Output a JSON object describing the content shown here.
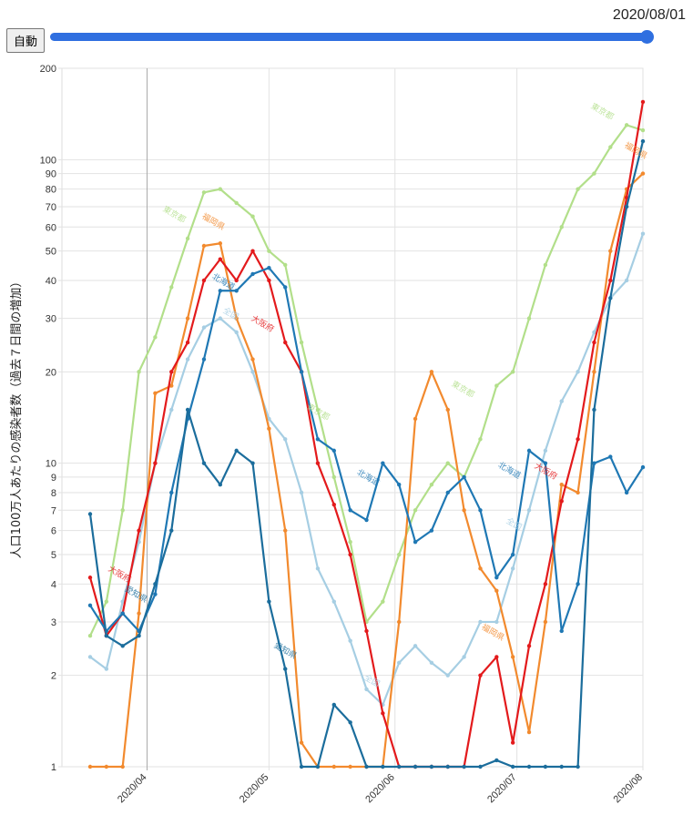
{
  "controls": {
    "auto_button": "自動",
    "current_date": "2020/08/01",
    "slider_value": 1.0
  },
  "chart_data": {
    "type": "line",
    "title": "",
    "xlabel": "",
    "ylabel": "人口100万人あたりの感染者数（過去７日間の増加）",
    "yscale": "log",
    "ylim": [
      1,
      200
    ],
    "yticks": [
      1,
      2,
      3,
      4,
      5,
      6,
      7,
      8,
      9,
      10,
      20,
      30,
      40,
      50,
      60,
      70,
      80,
      90,
      100,
      200
    ],
    "xlim": [
      "2020-03-18",
      "2020-08-01"
    ],
    "xticks": [
      {
        "date": "2020-04-01",
        "label": "2020/04"
      },
      {
        "date": "2020-05-01",
        "label": "2020/05"
      },
      {
        "date": "2020-06-01",
        "label": "2020/06"
      },
      {
        "date": "2020-07-01",
        "label": "2020/07"
      },
      {
        "date": "2020-08-01",
        "label": "2020/08"
      }
    ],
    "grid": true,
    "x": [
      "03-18",
      "03-22",
      "03-26",
      "03-30",
      "04-03",
      "04-07",
      "04-11",
      "04-15",
      "04-19",
      "04-23",
      "04-27",
      "05-01",
      "05-05",
      "05-09",
      "05-13",
      "05-17",
      "05-21",
      "05-25",
      "05-29",
      "06-02",
      "06-06",
      "06-10",
      "06-14",
      "06-18",
      "06-22",
      "06-26",
      "06-30",
      "07-04",
      "07-08",
      "07-12",
      "07-16",
      "07-20",
      "07-24",
      "07-28",
      "08-01"
    ],
    "series": [
      {
        "name": "全国",
        "color": "#a6cee3",
        "values": [
          2.3,
          2.1,
          3.5,
          5.5,
          10,
          15,
          22,
          28,
          30,
          27,
          20,
          14,
          12,
          8,
          4.5,
          3.5,
          2.6,
          1.8,
          1.6,
          2.2,
          2.5,
          2.2,
          2,
          2.3,
          3,
          3,
          4.5,
          7,
          11,
          16,
          20,
          27,
          35,
          40,
          57
        ]
      },
      {
        "name": "東京都",
        "color": "#b2df8a",
        "values": [
          2.7,
          3.5,
          7,
          20,
          26,
          38,
          55,
          78,
          80,
          72,
          65,
          50,
          45,
          25,
          15,
          9,
          5.5,
          3,
          3.5,
          5,
          7,
          8.5,
          10,
          9,
          12,
          18,
          20,
          30,
          45,
          60,
          80,
          90,
          110,
          130,
          125
        ]
      },
      {
        "name": "福岡県",
        "color": "#f28a2e",
        "values": [
          1,
          1,
          1,
          3.2,
          17,
          18,
          30,
          52,
          53,
          30,
          22,
          13,
          6,
          1.2,
          1,
          1,
          1,
          1,
          1,
          3,
          14,
          20,
          15,
          7,
          4.5,
          3.8,
          2.3,
          1.3,
          3,
          8.5,
          8,
          20,
          50,
          80,
          90
        ]
      },
      {
        "name": "大阪府",
        "color": "#e31a1c",
        "values": [
          4.2,
          2.7,
          3.2,
          6,
          10,
          20,
          25,
          40,
          47,
          40,
          50,
          40,
          25,
          20,
          10,
          7.3,
          5,
          2.8,
          1.5,
          1,
          1,
          1,
          1,
          1,
          2,
          2.3,
          1.2,
          2.5,
          4,
          7.5,
          12,
          25,
          40,
          75,
          155
        ]
      },
      {
        "name": "北海道",
        "color": "#1f78b4",
        "values": [
          3.4,
          2.8,
          3.2,
          2.8,
          3.7,
          8,
          14,
          22,
          37,
          37,
          42,
          44,
          38,
          20,
          12,
          11,
          7,
          6.5,
          10,
          8.5,
          5.5,
          6,
          8,
          9,
          7,
          4.2,
          5,
          11,
          10,
          2.8,
          4,
          10,
          10.5,
          8,
          9.7
        ]
      },
      {
        "name": "愛知県",
        "color": "#1b6d9c",
        "values": [
          6.8,
          2.7,
          2.5,
          2.7,
          4,
          6,
          15,
          10,
          8.5,
          11,
          10,
          3.5,
          2.1,
          1,
          1,
          1.6,
          1.4,
          1,
          1,
          1,
          1,
          1,
          1,
          1,
          1,
          1.05,
          1,
          1,
          1,
          1,
          1,
          15,
          35,
          70,
          115
        ]
      }
    ]
  }
}
